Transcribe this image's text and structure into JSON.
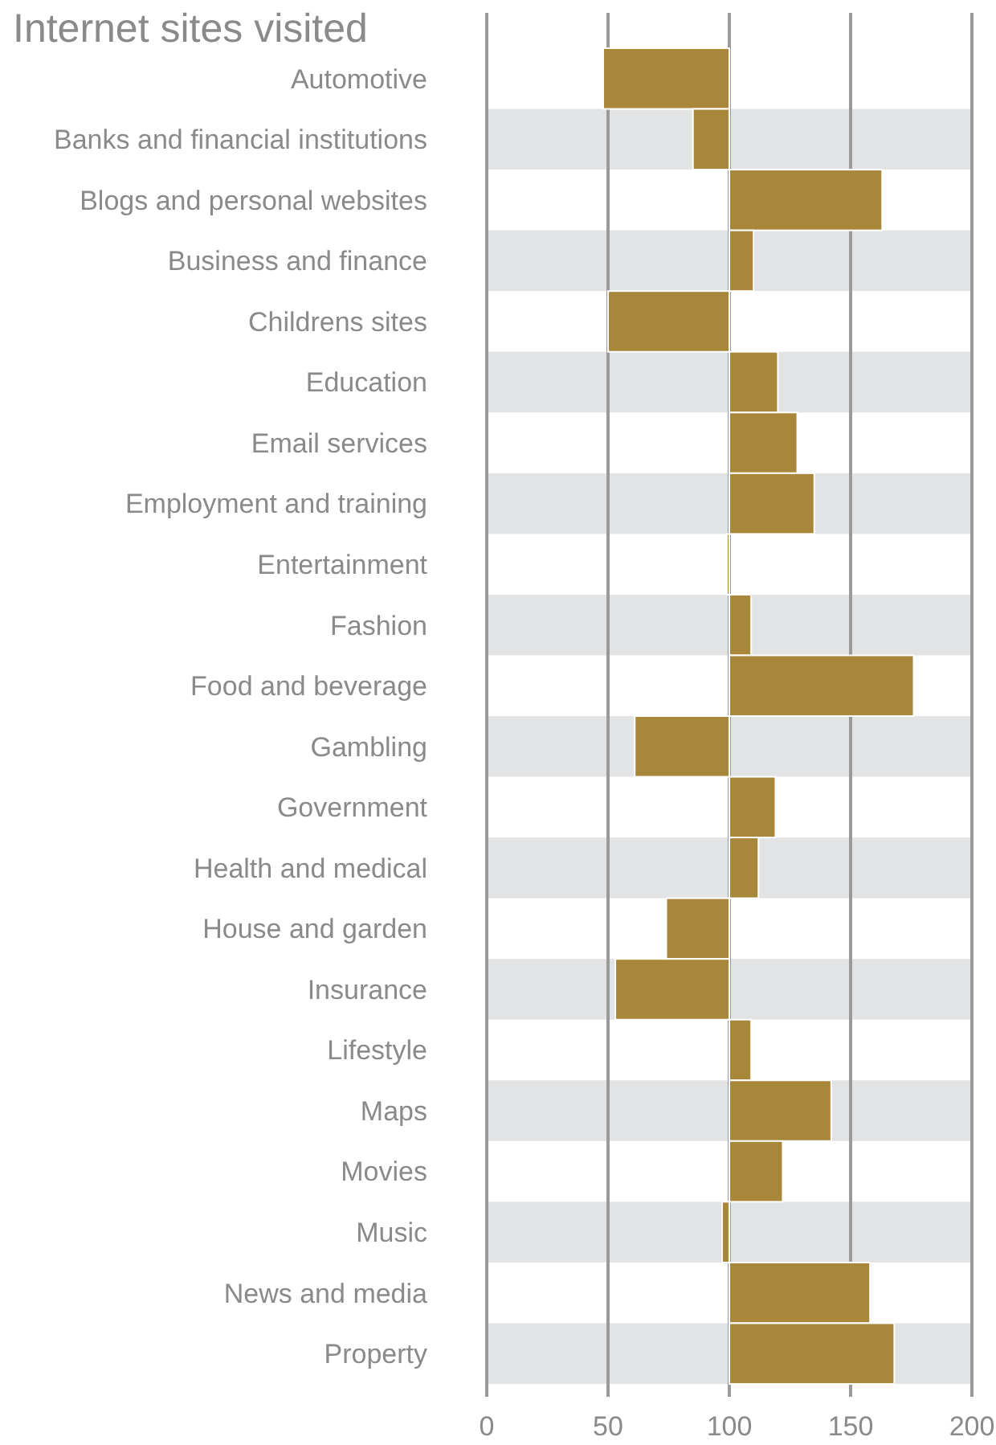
{
  "chart_data": {
    "type": "bar",
    "orientation": "horizontal",
    "title": "Internet sites visited",
    "categories": [
      "Automotive",
      "Banks and financial institutions",
      "Blogs and personal websites",
      "Business and finance",
      "Childrens sites",
      "Education",
      "Email services",
      "Employment and training",
      "Entertainment",
      "Fashion",
      "Food and beverage",
      "Gambling",
      "Government",
      "Health and medical",
      "House and garden",
      "Insurance",
      "Lifestyle",
      "Maps",
      "Movies",
      "Music",
      "News and media",
      "Property"
    ],
    "base": [
      100,
      100,
      100,
      100,
      100,
      100,
      100,
      100,
      100,
      100,
      100,
      100,
      100,
      100,
      100,
      100,
      100,
      100,
      100,
      100,
      100,
      100
    ],
    "values": [
      -52,
      -15,
      63,
      10,
      -50,
      20,
      28,
      35,
      -1,
      9,
      76,
      -39,
      19,
      12,
      -26,
      -47,
      9,
      42,
      22,
      -3,
      58,
      68
    ],
    "color": "#a8873a",
    "xlim": [
      0,
      200
    ],
    "xticks": [
      0,
      50,
      100,
      150,
      200
    ],
    "grid": "x"
  }
}
